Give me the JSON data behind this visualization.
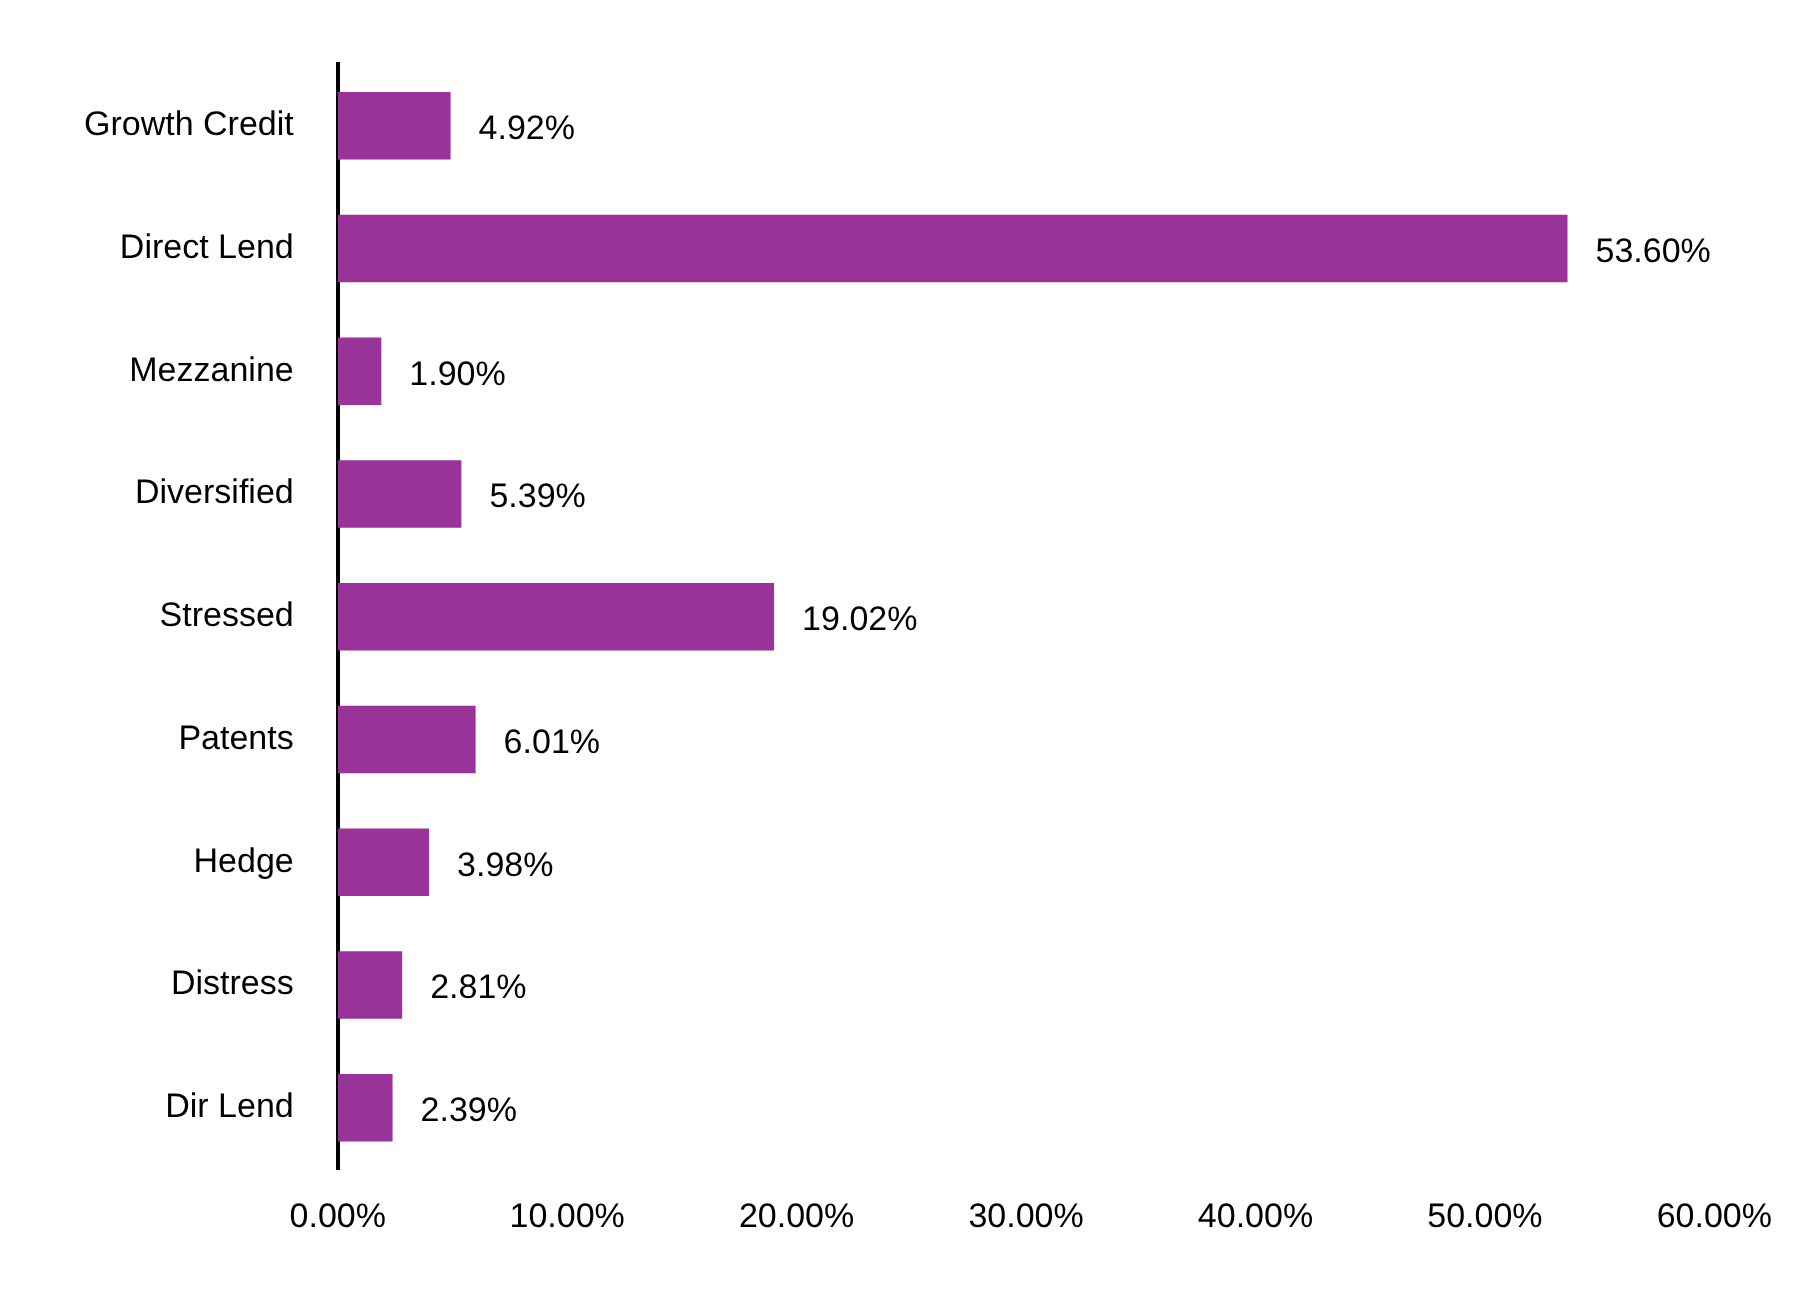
{
  "chart_data": {
    "type": "bar",
    "orientation": "horizontal",
    "categories": [
      "Growth Credit",
      "Direct Lend",
      "Mezzanine",
      "Diversified",
      "Stressed",
      "Patents",
      "Hedge",
      "Distress",
      "Dir Lend"
    ],
    "values": [
      4.92,
      53.6,
      1.9,
      5.39,
      19.02,
      6.01,
      3.98,
      2.81,
      2.39
    ],
    "value_labels": [
      "4.92%",
      "53.60%",
      "1.90%",
      "5.39%",
      "19.02%",
      "6.01%",
      "3.98%",
      "2.81%",
      "2.39%"
    ],
    "color": "#993399",
    "xlim": [
      0,
      60
    ],
    "xticks": [
      {
        "value": 0,
        "label": "0.00%"
      },
      {
        "value": 10,
        "label": "10.00%"
      },
      {
        "value": 20,
        "label": "20.00%"
      },
      {
        "value": 30,
        "label": "30.00%"
      },
      {
        "value": 40,
        "label": "40.00%"
      },
      {
        "value": 50,
        "label": "50.00%"
      },
      {
        "value": 60,
        "label": "60.00%"
      }
    ],
    "grid": false,
    "legend": false
  }
}
